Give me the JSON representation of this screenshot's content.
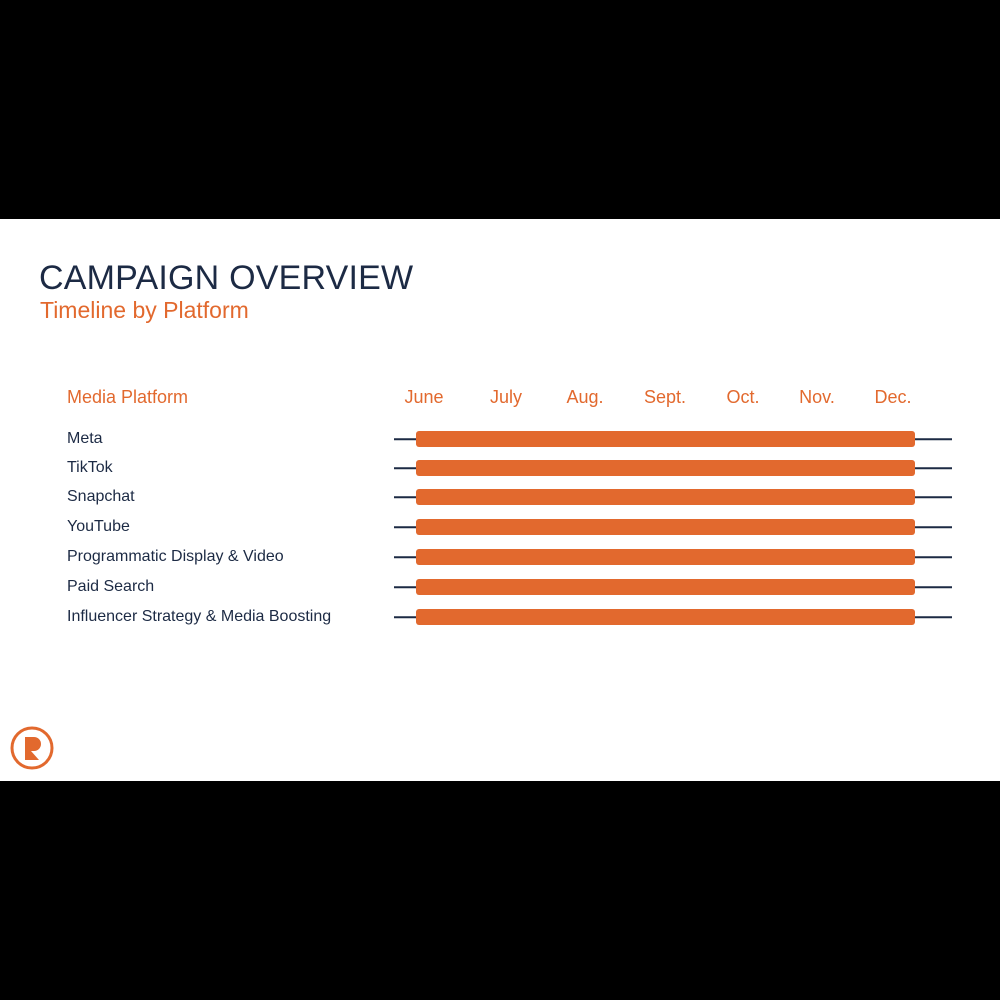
{
  "slide": {
    "title": "CAMPAIGN OVERVIEW",
    "subtitle": "Timeline by Platform"
  },
  "timeline": {
    "column_header": "Media Platform",
    "months": [
      "June",
      "July",
      "Aug.",
      "Sept.",
      "Oct.",
      "Nov.",
      "Dec."
    ],
    "rows": [
      {
        "label": "Meta",
        "start": "June",
        "end": "Dec."
      },
      {
        "label": "TikTok",
        "start": "June",
        "end": "Dec."
      },
      {
        "label": "Snapchat",
        "start": "June",
        "end": "Dec."
      },
      {
        "label": "YouTube",
        "start": "June",
        "end": "Dec."
      },
      {
        "label": "Programmatic Display & Video",
        "start": "June",
        "end": "Dec."
      },
      {
        "label": "Paid Search",
        "start": "June",
        "end": "Dec."
      },
      {
        "label": "Influencer Strategy & Media Boosting",
        "start": "June",
        "end": "Dec."
      }
    ]
  },
  "colors": {
    "accent": "#e2692e",
    "navy": "#1c2a44",
    "background": "#ffffff",
    "letterbox": "#000000"
  },
  "logo": {
    "icon": "brand-logo-icon"
  }
}
